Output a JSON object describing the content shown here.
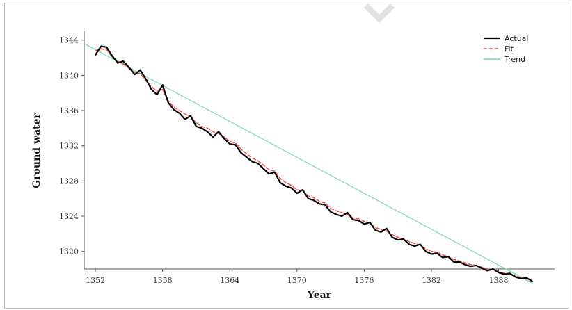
{
  "chart_data": {
    "type": "line",
    "title": "",
    "xlabel": "Year",
    "ylabel": "Ground water",
    "xlim": [
      1351,
      1393
    ],
    "ylim": [
      1318,
      1345
    ],
    "x_ticks": [
      1352,
      1358,
      1364,
      1370,
      1376,
      1382,
      1388
    ],
    "x_tick_labels": [
      "1352",
      "1358",
      "1364",
      "1370",
      "1376",
      "1382",
      "1388"
    ],
    "y_ticks": [
      1320,
      1324,
      1328,
      1332,
      1336,
      1340,
      1344
    ],
    "y_tick_labels": [
      "1320",
      "1324",
      "1328",
      "1332",
      "1336",
      "1340",
      "1344"
    ],
    "legend_position": "top-right",
    "grid": false,
    "series": [
      {
        "name": "Actual",
        "color": "#000000",
        "x": [
          1352,
          1352.5,
          1353,
          1353.5,
          1354,
          1354.5,
          1355,
          1355.5,
          1356,
          1356.5,
          1357,
          1357.5,
          1358,
          1358.5,
          1359,
          1359.5,
          1360,
          1360.5,
          1361,
          1361.5,
          1362,
          1362.5,
          1363,
          1363.5,
          1364,
          1364.5,
          1365,
          1365.5,
          1366,
          1366.5,
          1367,
          1367.5,
          1368,
          1368.5,
          1369,
          1369.5,
          1370,
          1370.5,
          1371,
          1371.5,
          1372,
          1372.5,
          1373,
          1373.5,
          1374,
          1374.5,
          1375,
          1375.5,
          1376,
          1376.5,
          1377,
          1377.5,
          1378,
          1378.5,
          1379,
          1379.5,
          1380,
          1380.5,
          1381,
          1381.5,
          1382,
          1382.5,
          1383,
          1383.5,
          1384,
          1384.5,
          1385,
          1385.5,
          1386,
          1386.5,
          1387,
          1387.5,
          1388,
          1388.5,
          1389,
          1389.5,
          1390,
          1390.5,
          1391
        ],
        "values": [
          1342.3,
          1343.3,
          1343.2,
          1342.2,
          1341.4,
          1341.6,
          1340.9,
          1340.1,
          1340.6,
          1339.6,
          1338.4,
          1337.8,
          1338.9,
          1336.9,
          1336.1,
          1335.7,
          1335.0,
          1335.4,
          1334.2,
          1334.0,
          1333.6,
          1333.0,
          1333.6,
          1332.8,
          1332.2,
          1332.1,
          1331.2,
          1330.7,
          1330.2,
          1330.0,
          1329.4,
          1328.8,
          1329.0,
          1327.8,
          1327.4,
          1327.2,
          1326.6,
          1327.0,
          1326.0,
          1325.8,
          1325.4,
          1325.3,
          1324.5,
          1324.2,
          1324.0,
          1324.4,
          1323.6,
          1323.5,
          1323.1,
          1323.3,
          1322.4,
          1322.2,
          1322.6,
          1321.6,
          1321.3,
          1321.4,
          1320.8,
          1320.6,
          1320.8,
          1320.0,
          1319.7,
          1319.8,
          1319.3,
          1319.4,
          1318.8,
          1318.8,
          1318.5,
          1318.3,
          1318.4,
          1318.1,
          1317.8,
          1318.0,
          1317.6,
          1317.4,
          1317.5,
          1317.1,
          1316.9,
          1317.0,
          1316.6
        ]
      },
      {
        "name": "Fit",
        "color": "#e8453c",
        "x": [
          1352,
          1352.5,
          1353,
          1353.5,
          1354,
          1354.5,
          1355,
          1355.5,
          1356,
          1356.5,
          1357,
          1357.5,
          1358,
          1358.5,
          1359,
          1359.5,
          1360,
          1360.5,
          1361,
          1361.5,
          1362,
          1362.5,
          1363,
          1363.5,
          1364,
          1364.5,
          1365,
          1365.5,
          1366,
          1366.5,
          1367,
          1367.5,
          1368,
          1368.5,
          1369,
          1369.5,
          1370,
          1370.5,
          1371,
          1371.5,
          1372,
          1372.5,
          1373,
          1373.5,
          1374,
          1374.5,
          1375,
          1375.5,
          1376,
          1376.5,
          1377,
          1377.5,
          1378,
          1378.5,
          1379,
          1379.5,
          1380,
          1380.5,
          1381,
          1381.5,
          1382,
          1382.5,
          1383,
          1383.5,
          1384,
          1384.5,
          1385,
          1385.5,
          1386,
          1386.5,
          1387,
          1387.5,
          1388,
          1388.5,
          1389,
          1389.5,
          1390,
          1390.5,
          1391
        ],
        "values": [
          1342.8,
          1343.0,
          1342.9,
          1342.1,
          1341.6,
          1341.3,
          1340.8,
          1340.3,
          1340.2,
          1339.4,
          1338.7,
          1338.2,
          1338.4,
          1337.1,
          1336.4,
          1336.0,
          1335.6,
          1335.3,
          1334.6,
          1334.2,
          1334.0,
          1333.6,
          1333.4,
          1333.0,
          1332.5,
          1332.3,
          1331.6,
          1331.1,
          1330.6,
          1330.3,
          1329.8,
          1329.3,
          1329.1,
          1328.3,
          1327.8,
          1327.5,
          1327.0,
          1326.9,
          1326.3,
          1326.1,
          1325.7,
          1325.5,
          1324.9,
          1324.6,
          1324.4,
          1324.2,
          1323.8,
          1323.7,
          1323.4,
          1323.2,
          1322.7,
          1322.5,
          1322.3,
          1321.9,
          1321.6,
          1321.4,
          1321.1,
          1320.9,
          1320.7,
          1320.3,
          1320.0,
          1319.9,
          1319.6,
          1319.4,
          1319.1,
          1318.9,
          1318.7,
          1318.5,
          1318.4,
          1318.2,
          1318.0,
          1317.9,
          1317.7,
          1317.5,
          1317.4,
          1317.2,
          1317.0,
          1316.9,
          1316.7
        ]
      },
      {
        "name": "Trend",
        "color": "#7fd8b0",
        "x": [
          1351,
          1391
        ],
        "values": [
          1343.6,
          1316.4
        ]
      }
    ]
  }
}
